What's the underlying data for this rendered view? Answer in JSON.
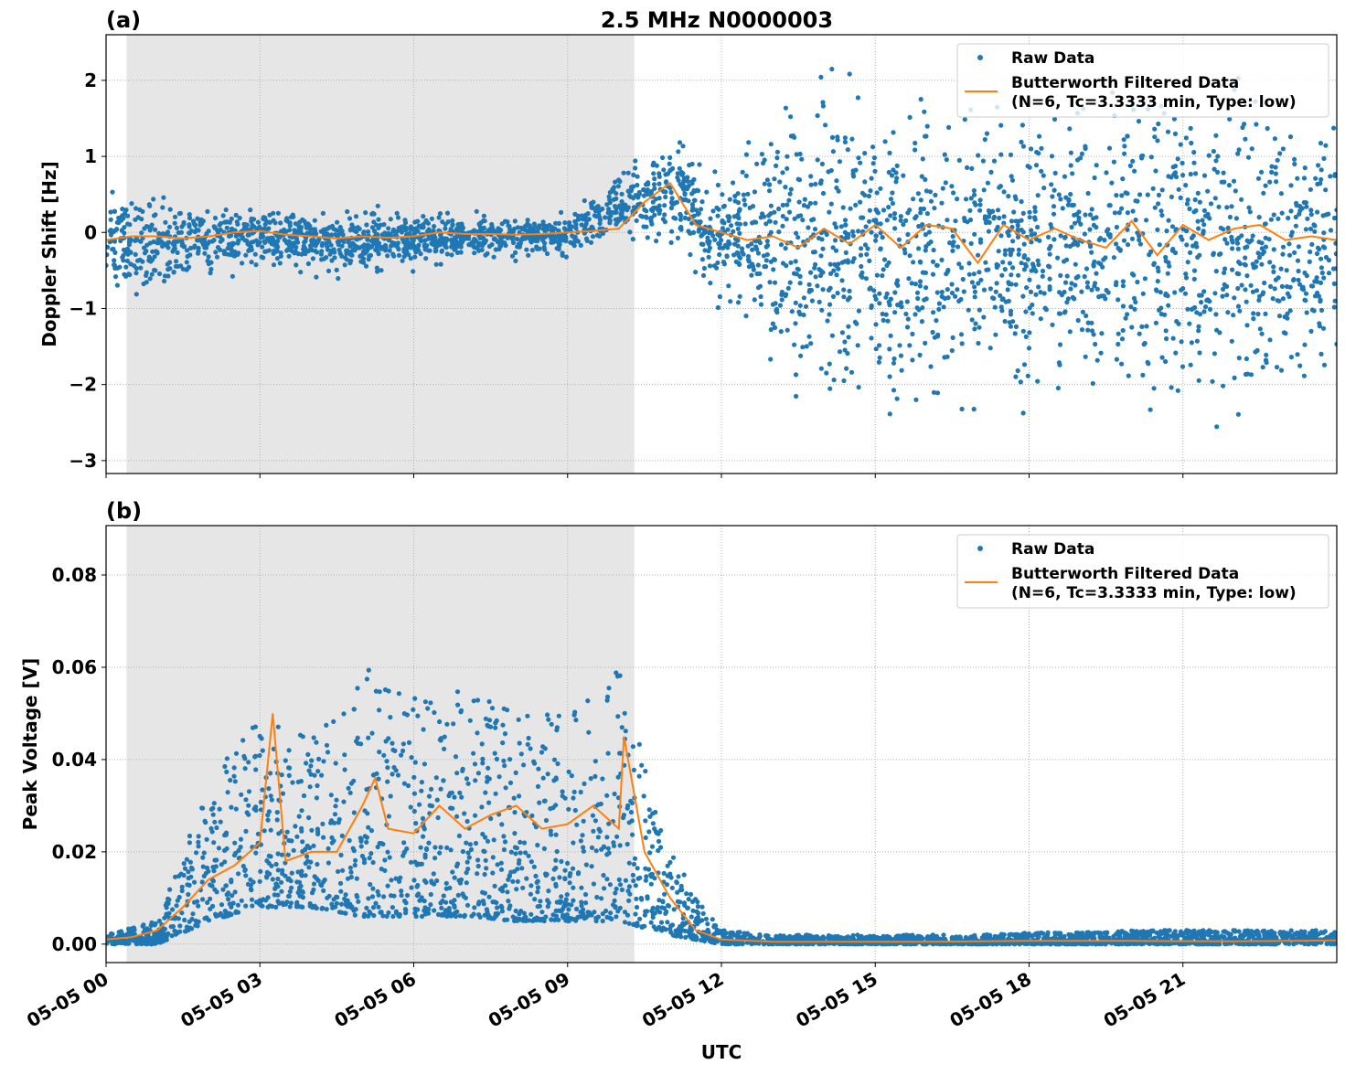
{
  "figure": {
    "title": "2.5 MHz N0000003",
    "xlabel": "UTC",
    "x_tick_labels": [
      "05-05 00",
      "05-05 03",
      "05-05 06",
      "05-05 09",
      "05-05 12",
      "05-05 15",
      "05-05 18",
      "05-05 21"
    ],
    "x_ticks_hours": [
      0,
      3,
      6,
      9,
      12,
      15,
      18,
      21
    ],
    "xlim_hours": [
      0,
      24
    ],
    "shaded_interval_hours": [
      0.4,
      10.3
    ],
    "colors": {
      "raw": "#1f77b4",
      "filtered": "#ff7f0e",
      "shade": "#e6e6e6"
    }
  },
  "chart_data": [
    {
      "type": "scatter",
      "panel_label": "(a)",
      "ylabel": "Doppler Shift [Hz]",
      "ylim": [
        -3.17,
        2.6
      ],
      "y_ticks": [
        -3,
        -2,
        -1,
        0,
        1,
        2
      ],
      "y_tick_labels": [
        "−3",
        "−2",
        "−1",
        "0",
        "1",
        "2"
      ],
      "grid": true,
      "legend_position": "top-right",
      "legend": [
        "Raw Data",
        "Butterworth Filtered Data",
        "(N=6, Tc=3.3333 min, Type: low)"
      ],
      "raw_envelope": {
        "hours": [
          0,
          1,
          2,
          3,
          4,
          5,
          6,
          7,
          8,
          9,
          10,
          11,
          12,
          13,
          14,
          15,
          16,
          17,
          18,
          19,
          20,
          21,
          22,
          23,
          24
        ],
        "low": [
          -0.7,
          -0.8,
          -0.5,
          -0.4,
          -0.5,
          -0.45,
          -0.4,
          -0.3,
          -0.3,
          -0.25,
          -0.1,
          0.0,
          -0.9,
          -1.7,
          -2.0,
          -2.0,
          -2.0,
          -2.0,
          -2.0,
          -2.0,
          -2.0,
          -2.0,
          -2.0,
          -2.0,
          -1.8
        ],
        "high": [
          0.5,
          0.4,
          0.3,
          0.3,
          0.25,
          0.25,
          0.25,
          0.2,
          0.2,
          0.2,
          0.8,
          1.1,
          0.7,
          1.4,
          1.6,
          1.6,
          1.6,
          1.6,
          1.6,
          1.6,
          1.6,
          1.6,
          1.6,
          1.6,
          1.4
        ]
      },
      "filtered": {
        "hours": [
          0,
          0.5,
          1,
          1.5,
          2,
          2.5,
          3,
          3.5,
          4,
          4.5,
          5,
          5.5,
          6,
          6.5,
          7,
          7.5,
          8,
          8.5,
          9,
          9.5,
          10,
          10.5,
          11,
          11.5,
          12,
          12.5,
          13,
          13.5,
          14,
          14.5,
          15,
          15.5,
          16,
          16.5,
          17,
          17.5,
          18,
          18.5,
          19,
          19.5,
          20,
          20.5,
          21,
          21.5,
          22,
          22.5,
          23,
          23.5,
          24
        ],
        "values": [
          -0.1,
          -0.05,
          -0.05,
          -0.08,
          -0.05,
          0,
          0.02,
          -0.03,
          -0.05,
          -0.08,
          -0.05,
          -0.07,
          -0.05,
          0,
          -0.02,
          -0.02,
          -0.03,
          -0.02,
          0,
          0.02,
          0.05,
          0.4,
          0.65,
          0.1,
          0,
          -0.1,
          -0.05,
          -0.2,
          0.05,
          -0.15,
          0.1,
          -0.2,
          0.1,
          0.05,
          -0.4,
          0.1,
          -0.1,
          0.05,
          -0.1,
          -0.2,
          0.15,
          -0.3,
          0.1,
          -0.1,
          0.05,
          0.1,
          -0.1,
          -0.05,
          -0.1
        ]
      }
    },
    {
      "type": "scatter",
      "panel_label": "(b)",
      "ylabel": "Peak Voltage [V]",
      "ylim": [
        -0.004,
        0.0907
      ],
      "y_ticks": [
        0,
        0.02,
        0.04,
        0.06,
        0.08
      ],
      "y_tick_labels": [
        "0.00",
        "0.02",
        "0.04",
        "0.06",
        "0.08"
      ],
      "grid": true,
      "legend_position": "top-right",
      "legend": [
        "Raw Data",
        "Butterworth Filtered Data",
        "(N=6, Tc=3.3333 min, Type: low)"
      ],
      "raw_envelope": {
        "hours": [
          0,
          1,
          2,
          3,
          4,
          5,
          6,
          7,
          8,
          9,
          10,
          11,
          12,
          13,
          14,
          15,
          16,
          17,
          18,
          19,
          20,
          21,
          22,
          23,
          24
        ],
        "low": [
          0,
          0,
          0.005,
          0.008,
          0.008,
          0.006,
          0.006,
          0.006,
          0.005,
          0.005,
          0.005,
          0.002,
          0,
          0,
          0,
          0,
          0,
          0,
          0,
          0,
          0,
          0,
          0,
          0,
          0
        ],
        "high": [
          0.002,
          0.005,
          0.035,
          0.05,
          0.045,
          0.06,
          0.055,
          0.055,
          0.05,
          0.05,
          0.06,
          0.02,
          0.003,
          0.002,
          0.002,
          0.002,
          0.002,
          0.002,
          0.0025,
          0.0025,
          0.003,
          0.003,
          0.003,
          0.003,
          0.003
        ]
      },
      "filtered": {
        "hours": [
          0,
          0.5,
          1,
          1.5,
          2,
          2.5,
          3,
          3.25,
          3.5,
          4,
          4.5,
          5,
          5.25,
          5.5,
          6,
          6.5,
          7,
          7.5,
          8,
          8.5,
          9,
          9.5,
          10,
          10.1,
          10.5,
          11,
          11.5,
          12,
          13,
          16,
          18,
          20,
          22,
          24
        ],
        "values": [
          0.001,
          0.0015,
          0.003,
          0.008,
          0.014,
          0.017,
          0.022,
          0.05,
          0.018,
          0.02,
          0.02,
          0.03,
          0.036,
          0.025,
          0.024,
          0.03,
          0.025,
          0.028,
          0.03,
          0.025,
          0.026,
          0.03,
          0.025,
          0.045,
          0.02,
          0.01,
          0.003,
          0.001,
          0.0005,
          0.0005,
          0.0007,
          0.0007,
          0.0006,
          0.0008
        ]
      }
    }
  ]
}
